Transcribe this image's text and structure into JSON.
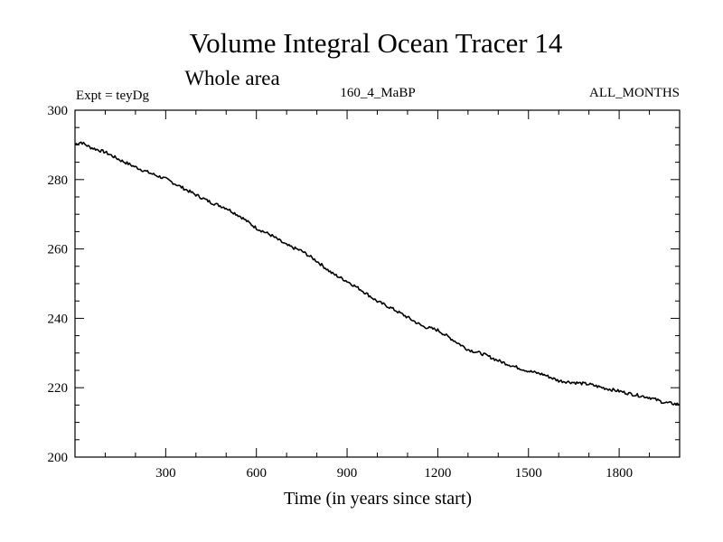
{
  "chart_data": {
    "type": "line",
    "title": "Volume Integral Ocean Tracer 14",
    "subtitle": "Whole area",
    "annotation_left": "Expt = teyDg",
    "annotation_center": "160_4_MaBP",
    "annotation_right": "ALL_MONTHS",
    "xlabel": "Time (in years since start)",
    "ylabel": "",
    "xlim": [
      0,
      2000
    ],
    "ylim": [
      200,
      300
    ],
    "xticks": [
      300,
      600,
      900,
      1200,
      1500,
      1800
    ],
    "xtick_labels": [
      "300",
      "600",
      "900",
      "1200",
      "1500",
      "1800"
    ],
    "yticks": [
      200,
      220,
      240,
      260,
      280,
      300
    ],
    "ytick_labels": [
      "200",
      "220",
      "240",
      "260",
      "280",
      "300"
    ],
    "grid": false,
    "series": [
      {
        "name": "Tracer 14",
        "color": "#000000",
        "x": [
          0,
          20,
          50,
          100,
          150,
          200,
          250,
          300,
          350,
          400,
          450,
          500,
          550,
          600,
          650,
          700,
          750,
          800,
          850,
          900,
          950,
          1000,
          1050,
          1100,
          1150,
          1200,
          1250,
          1300,
          1350,
          1400,
          1450,
          1500,
          1550,
          1600,
          1650,
          1700,
          1750,
          1800,
          1850,
          1900,
          1950,
          2000
        ],
        "y": [
          290.2,
          290.8,
          289.3,
          287.9,
          285.6,
          283.6,
          281.8,
          280.2,
          277.9,
          275.6,
          273.4,
          271.8,
          269.2,
          266.0,
          263.9,
          261.1,
          259.4,
          256.5,
          253.0,
          250.7,
          248.0,
          244.9,
          242.8,
          240.3,
          237.7,
          236.6,
          233.8,
          231.0,
          229.7,
          227.8,
          226.2,
          224.8,
          223.8,
          222.0,
          221.5,
          221.0,
          219.9,
          219.0,
          218.0,
          217.2,
          215.7,
          215.2
        ]
      }
    ]
  }
}
